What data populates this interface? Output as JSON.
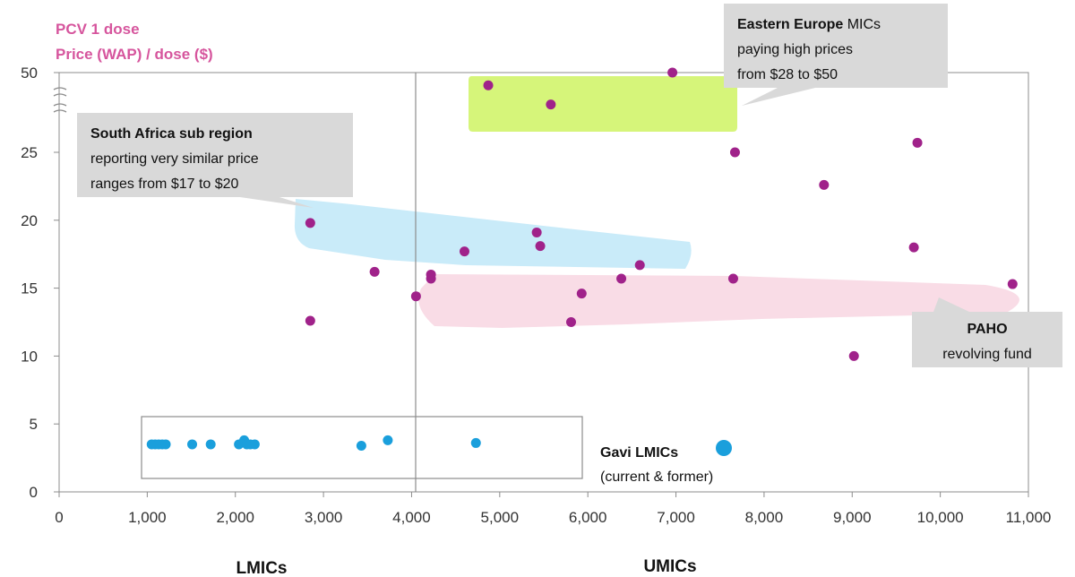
{
  "chart_data": {
    "type": "scatter",
    "ylabel_lines": [
      "PCV 1 dose",
      "Price (WAP) / dose ($)"
    ],
    "x_ticks": [
      "0",
      "1,000",
      "2,000",
      "3,000",
      "4,000",
      "5,000",
      "6,000",
      "7,000",
      "8,000",
      "9,000",
      "10,000",
      "11,000"
    ],
    "y_ticks": [
      "0",
      "5",
      "10",
      "15",
      "20",
      "25",
      "50"
    ],
    "xlim": [
      0,
      11000
    ],
    "ylim": [
      0,
      50
    ],
    "y_axis_break": "between 25 and 50",
    "income_group_divider_x": 4000,
    "category_labels": [
      "LMICs",
      "UMICs"
    ],
    "grid": false,
    "series": [
      {
        "color": "#a0228a",
        "points": [
          {
            "x": 2850,
            "y": 19.8
          },
          {
            "x": 2850,
            "y": 12.6
          },
          {
            "x": 3580,
            "y": 16.2
          },
          {
            "x": 4050,
            "y": 14.4
          },
          {
            "x": 4220,
            "y": 16.0
          },
          {
            "x": 4220,
            "y": 15.7
          },
          {
            "x": 4600,
            "y": 17.7
          },
          {
            "x": 4870,
            "y": 46.0
          },
          {
            "x": 5420,
            "y": 19.1
          },
          {
            "x": 5460,
            "y": 18.1
          },
          {
            "x": 5580,
            "y": 40.0
          },
          {
            "x": 5810,
            "y": 12.5
          },
          {
            "x": 5930,
            "y": 14.6
          },
          {
            "x": 6380,
            "y": 15.7
          },
          {
            "x": 6590,
            "y": 16.7
          },
          {
            "x": 6960,
            "y": 50.0
          },
          {
            "x": 7650,
            "y": 15.7
          },
          {
            "x": 7670,
            "y": 25.0
          },
          {
            "x": 8680,
            "y": 22.6
          },
          {
            "x": 9020,
            "y": 10.0
          },
          {
            "x": 9700,
            "y": 18.0
          },
          {
            "x": 9740,
            "y": 28.0
          },
          {
            "x": 10820,
            "y": 15.3
          }
        ]
      },
      {
        "name": "Gavi LMICs",
        "color": "#1a9fdc",
        "points": [
          {
            "x": 1050,
            "y": 3.5
          },
          {
            "x": 1090,
            "y": 3.5
          },
          {
            "x": 1130,
            "y": 3.5
          },
          {
            "x": 1170,
            "y": 3.5
          },
          {
            "x": 1210,
            "y": 3.5
          },
          {
            "x": 1510,
            "y": 3.5
          },
          {
            "x": 1720,
            "y": 3.5
          },
          {
            "x": 2040,
            "y": 3.5
          },
          {
            "x": 2100,
            "y": 3.8
          },
          {
            "x": 2130,
            "y": 3.5
          },
          {
            "x": 2170,
            "y": 3.5
          },
          {
            "x": 2220,
            "y": 3.5
          },
          {
            "x": 3430,
            "y": 3.4
          },
          {
            "x": 3730,
            "y": 3.8
          },
          {
            "x": 4730,
            "y": 3.6
          }
        ]
      }
    ],
    "annotations": {
      "eastern_europe": {
        "bold": "Eastern Europe",
        "rest": " MICs",
        "line2": "paying high prices",
        "line3": "from  $28 to $50"
      },
      "south_africa": {
        "bold": "South Africa sub region",
        "line2": "reporting very similar price",
        "line3": "ranges from $17 to $20"
      },
      "paho": {
        "bold": "PAHO",
        "line2": "revolving fund"
      },
      "gavi": {
        "bold": "Gavi LMICs",
        "line2": "(current & former)"
      }
    }
  },
  "colors": {
    "umic_dot": "#a0228a",
    "gavi_dot": "#1a9fdc",
    "axis_label": "#d6559d",
    "eastern_europe_band": "#d6f57a",
    "south_africa_band": "#c9ebf9",
    "paho_band": "#f9dce6",
    "callout_fill": "#d9d9d9"
  }
}
